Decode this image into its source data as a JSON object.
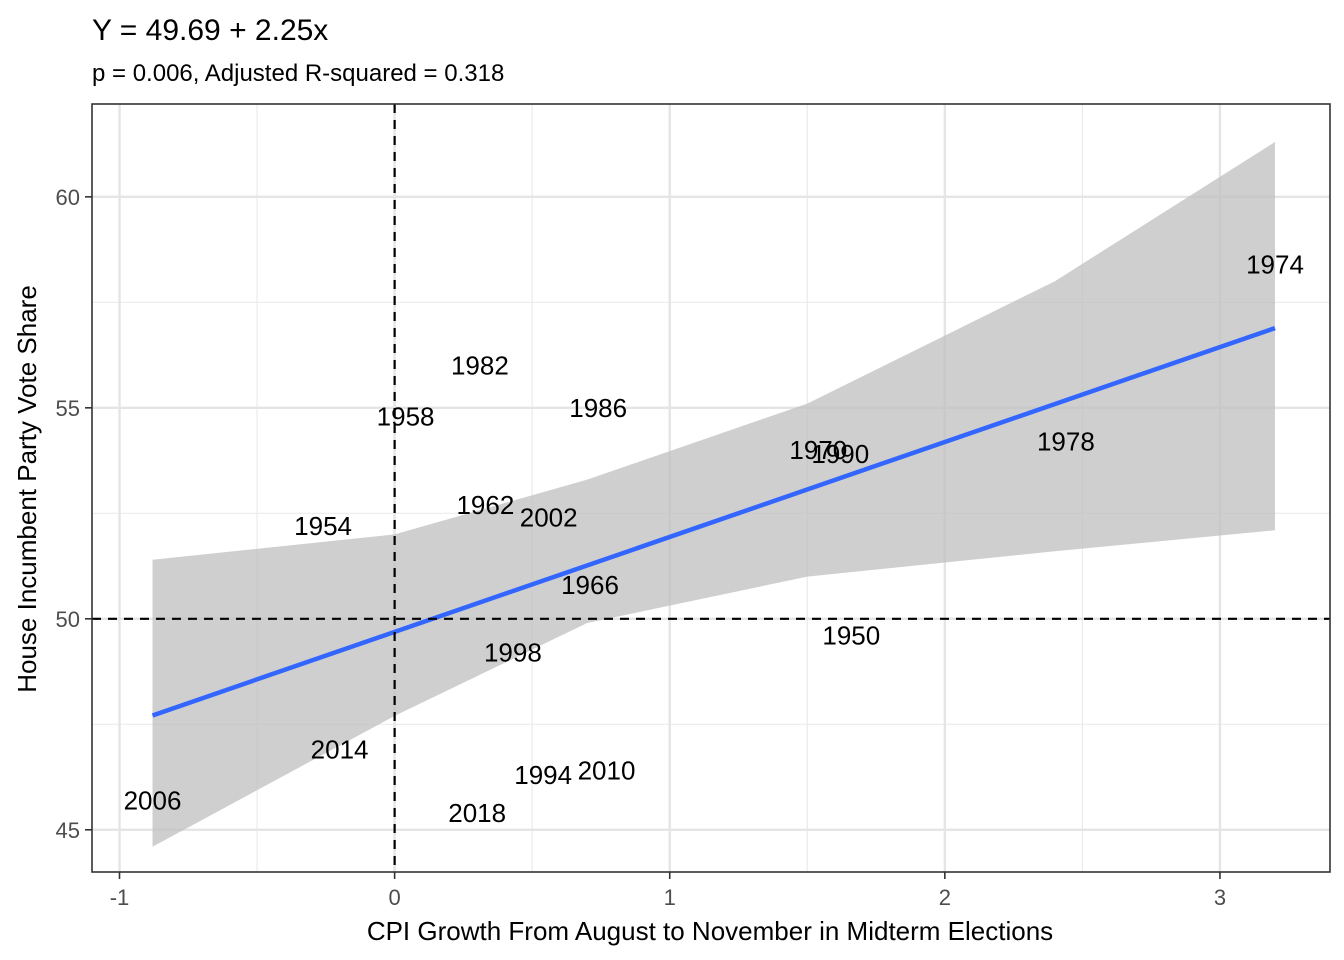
{
  "chart_data": {
    "type": "scatter",
    "title": "Y = 49.69 + 2.25x",
    "subtitle": "p = 0.006, Adjusted R-squared = 0.318",
    "xlabel": "CPI Growth From August to November in Midterm Elections",
    "ylabel": "House Incumbent Party Vote Share",
    "xlim": [
      -1.1,
      3.4
    ],
    "ylim": [
      44.0,
      62.2
    ],
    "x_ticks": [
      -1,
      0,
      1,
      2,
      3
    ],
    "x_tick_labels": [
      "-1",
      "0",
      "1",
      "2",
      "3"
    ],
    "y_ticks": [
      45,
      50,
      55,
      60
    ],
    "y_tick_labels": [
      "45",
      "50",
      "55",
      "60"
    ],
    "grid": true,
    "reference_lines": {
      "vertical_x": 0,
      "horizontal_y": 50,
      "style": "dashed"
    },
    "points": [
      {
        "label": "1974",
        "x": 3.2,
        "y": 58.4
      },
      {
        "label": "1982",
        "x": 0.31,
        "y": 56.0
      },
      {
        "label": "1986",
        "x": 0.74,
        "y": 55.0
      },
      {
        "label": "1958",
        "x": 0.04,
        "y": 54.8
      },
      {
        "label": "1970",
        "x": 1.54,
        "y": 54.0
      },
      {
        "label": "1990",
        "x": 1.62,
        "y": 53.9
      },
      {
        "label": "1978",
        "x": 2.44,
        "y": 54.2
      },
      {
        "label": "1962",
        "x": 0.33,
        "y": 52.7
      },
      {
        "label": "2002",
        "x": 0.56,
        "y": 52.4
      },
      {
        "label": "1954",
        "x": -0.26,
        "y": 52.2
      },
      {
        "label": "1966",
        "x": 0.71,
        "y": 50.8
      },
      {
        "label": "1950",
        "x": 1.66,
        "y": 49.6
      },
      {
        "label": "1998",
        "x": 0.43,
        "y": 49.2
      },
      {
        "label": "2014",
        "x": -0.2,
        "y": 46.9
      },
      {
        "label": "2010",
        "x": 0.77,
        "y": 46.4
      },
      {
        "label": "1994",
        "x": 0.54,
        "y": 46.3
      },
      {
        "label": "2006",
        "x": -0.88,
        "y": 45.7
      },
      {
        "label": "2018",
        "x": 0.3,
        "y": 45.4
      }
    ],
    "fit": {
      "intercept": 49.69,
      "slope": 2.25,
      "x_range": [
        -0.88,
        3.2
      ],
      "color": "#3366FF",
      "confidence_band": {
        "color": "#bfbfbf",
        "x": [
          -0.88,
          0.0,
          0.7,
          1.5,
          2.4,
          3.2
        ],
        "lower": [
          44.6,
          47.7,
          49.9,
          51.0,
          51.6,
          52.1
        ],
        "upper": [
          51.4,
          52.0,
          53.3,
          55.1,
          58.0,
          61.3
        ]
      }
    }
  }
}
